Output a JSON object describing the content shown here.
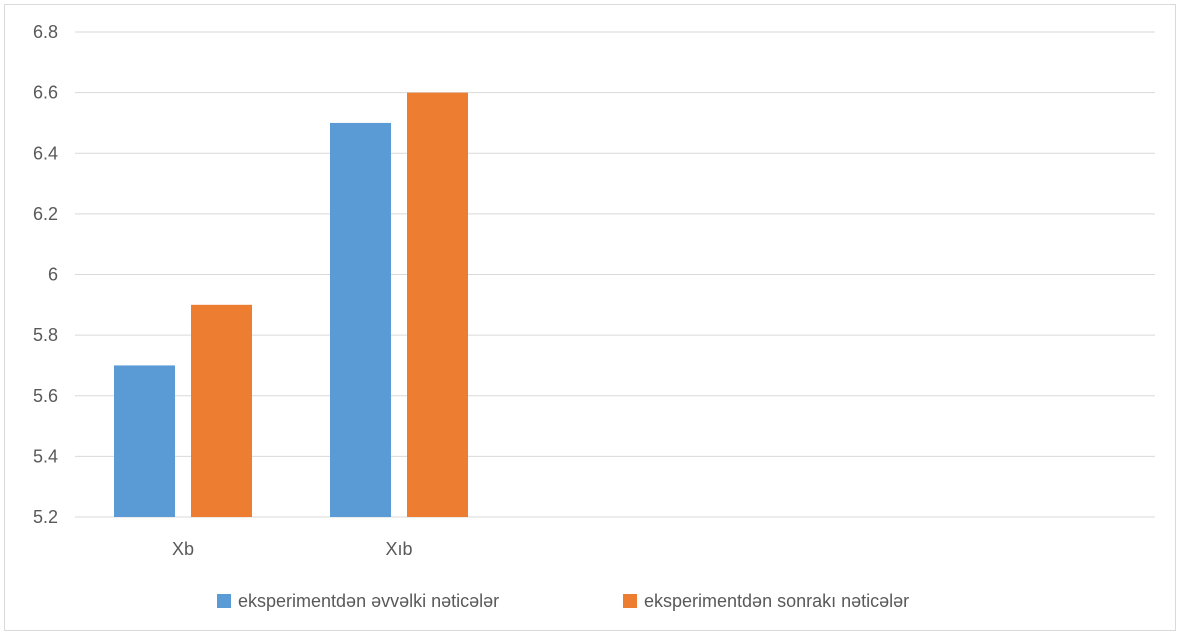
{
  "chart_data": {
    "type": "bar",
    "title": "",
    "xlabel": "",
    "ylabel": "",
    "categories": [
      "Xb",
      "Xıb",
      "",
      "",
      ""
    ],
    "series": [
      {
        "name": "eksperimentdən əvvəlki nəticələr",
        "values": [
          5.7,
          6.5,
          null,
          null,
          null
        ],
        "color": "#5b9bd5"
      },
      {
        "name": "eksperimentdən sonrakı nəticələr",
        "values": [
          5.9,
          6.6,
          null,
          null,
          null
        ],
        "color": "#ed7d31"
      }
    ],
    "ylim": [
      5.2,
      6.8
    ],
    "yticks": [
      "5.2",
      "5.4",
      "5.6",
      "5.8",
      "6",
      "6.2",
      "6.4",
      "6.6",
      "6.8"
    ],
    "grid": true,
    "legend_position": "bottom"
  },
  "colors": {
    "gridline": "#d9d9d9",
    "text": "#595959",
    "frame": "#d9d9d9"
  }
}
